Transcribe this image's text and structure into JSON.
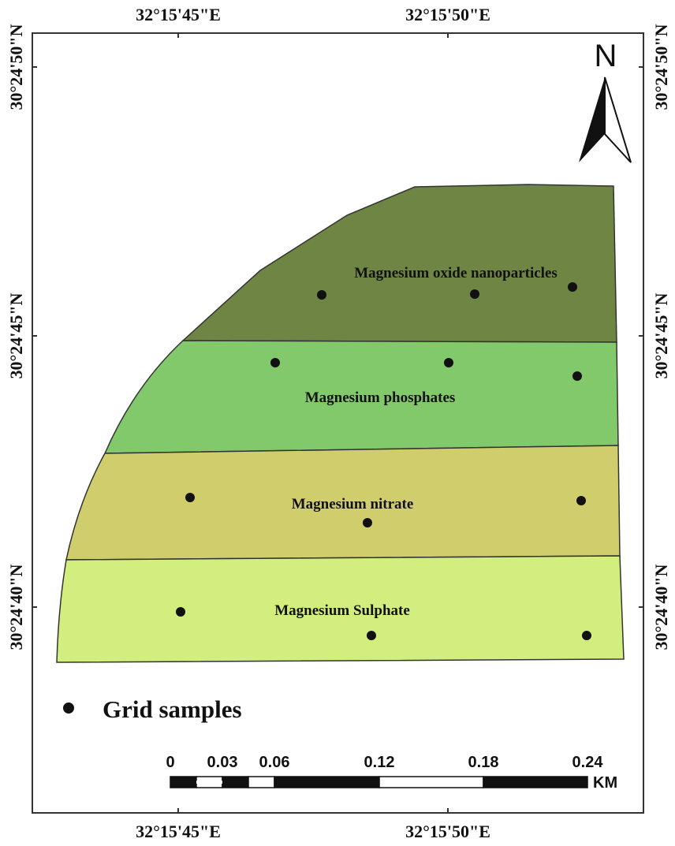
{
  "map": {
    "top_axis": [
      "32°15'45\"E",
      "32°15'50\"E"
    ],
    "bottom_axis": [
      "32°15'45\"E",
      "32°15'50\"E"
    ],
    "left_axis": [
      "30°24'50\"N",
      "30°24'45\"N",
      "30°24'40\"N"
    ],
    "right_axis": [
      "30°24'50\"N",
      "30°24'45\"N",
      "30°24'40\"N"
    ],
    "north_label": "N",
    "zones": [
      {
        "label": "Magnesium oxide nanoparticles",
        "color": "#6e8543",
        "samples": 3
      },
      {
        "label": "Magnesium phosphates",
        "color": "#82c96b",
        "samples": 3
      },
      {
        "label": "Magnesium nitrate",
        "color": "#d0ce6c",
        "samples": 3
      },
      {
        "label": "Magnesium Sulphate",
        "color": "#d2ee7e",
        "samples": 3
      }
    ],
    "legend": {
      "label": "Grid samples"
    },
    "scale_bar": {
      "ticks": [
        "0",
        "0.03",
        "0.06",
        "0.12",
        "0.18",
        "0.24"
      ],
      "unit": "KM"
    }
  }
}
